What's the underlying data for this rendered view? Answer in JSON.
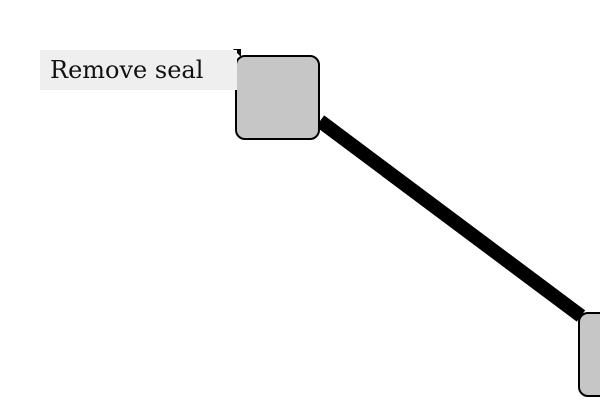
{
  "tooltip": {
    "text": "Remove seal"
  },
  "colors": {
    "node_fill": "#c6c6c6",
    "node_stroke": "#000000",
    "connector": "#000000",
    "tooltip_background": "#efefef"
  }
}
